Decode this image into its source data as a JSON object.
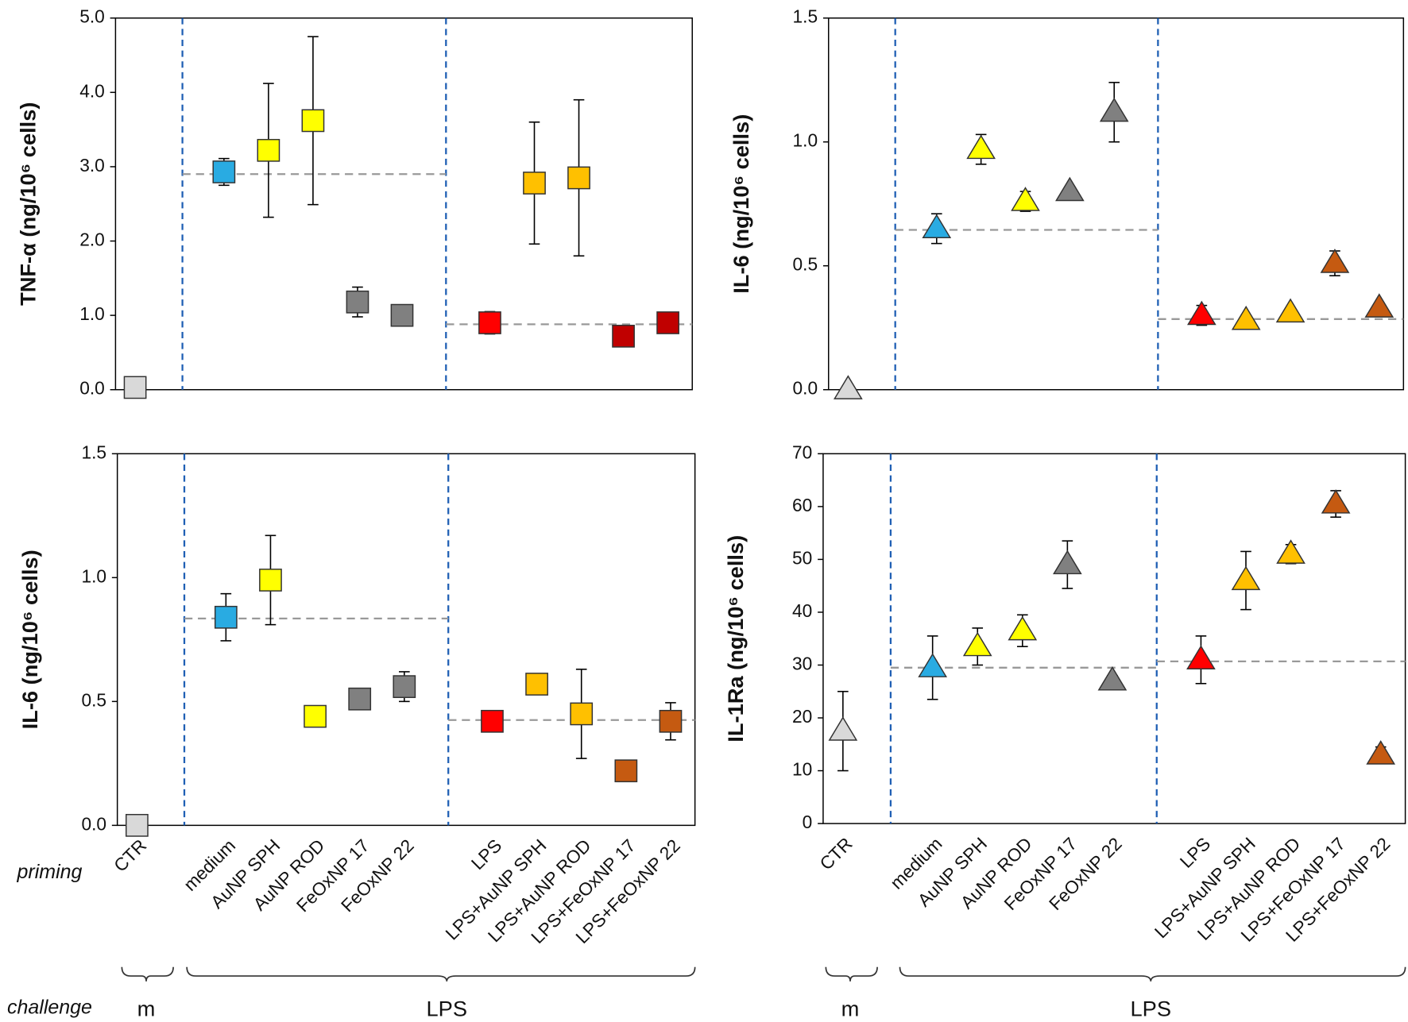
{
  "annotations": {
    "priming": "priming",
    "challenge": "challenge",
    "m": "m",
    "LPS": "LPS"
  },
  "chart_data": [
    {
      "type": "errorbar",
      "marker": "square",
      "ylabel": "TNF-α (ng/10⁶ cells)",
      "ylim": [
        0,
        5
      ],
      "yticks": [
        {
          "value": 0,
          "label": "0.0"
        },
        {
          "value": 1,
          "label": "1.0"
        },
        {
          "value": 2,
          "label": "2.0"
        },
        {
          "value": 3,
          "label": "3.0"
        },
        {
          "value": 4,
          "label": "4.0"
        },
        {
          "value": 5,
          "label": "5.0"
        }
      ],
      "values": [
        0.03,
        2.93,
        3.22,
        3.62,
        1.18,
        1.0,
        0.9,
        2.78,
        2.85,
        0.72,
        0.9
      ],
      "errors": [
        0,
        0.18,
        0.9,
        1.13,
        0.2,
        0.05,
        0.15,
        0.82,
        1.05,
        0.05,
        0.05
      ],
      "colors": [
        "#d9d9d9",
        "#29abe2",
        "#ffff00",
        "#ffff00",
        "#808080",
        "#808080",
        "#ff0000",
        "#ffc000",
        "#ffc000",
        "#c00000",
        "#c00000"
      ],
      "reference_lines": [
        2.9,
        0.88
      ]
    },
    {
      "type": "errorbar",
      "marker": "triangle",
      "ylabel": "IL-6 (ng/10⁶ cells)",
      "ylim": [
        0,
        1.5
      ],
      "yticks": [
        {
          "value": 0,
          "label": "0.0"
        },
        0.5,
        {
          "value": 1,
          "label": "1.0"
        },
        1.5
      ],
      "values": [
        0.0,
        0.65,
        0.97,
        0.76,
        0.8,
        1.12,
        0.3,
        0.28,
        0.31,
        0.51,
        0.33
      ],
      "errors": [
        0,
        0.06,
        0.06,
        0.04,
        0.02,
        0.12,
        0.04,
        0.02,
        0.02,
        0.05,
        0.02
      ],
      "colors": [
        "#d9d9d9",
        "#29abe2",
        "#ffff00",
        "#ffff00",
        "#808080",
        "#808080",
        "#ff0000",
        "#ffc000",
        "#ffc000",
        "#c55a11",
        "#c55a11"
      ],
      "reference_lines": [
        0.645,
        0.285
      ]
    },
    {
      "type": "errorbar",
      "marker": "square",
      "ylabel": "IL-6 (ng/10⁶ cells)",
      "categories": [
        "CTR",
        "medium",
        "AuNP SPH",
        "AuNP ROD",
        "FeOxNP 17",
        "FeOxNP 22",
        "LPS",
        "LPS+AuNP SPH",
        "LPS+AuNP ROD",
        "LPS+FeOxNP 17",
        "LPS+FeOxNP 22"
      ],
      "ylim": [
        0,
        1.5
      ],
      "yticks": [
        {
          "value": 0,
          "label": "0.0"
        },
        0.5,
        {
          "value": 1,
          "label": "1.0"
        },
        1.5
      ],
      "values": [
        0.0,
        0.84,
        0.99,
        0.44,
        0.51,
        0.56,
        0.42,
        0.57,
        0.45,
        0.22,
        0.42
      ],
      "errors": [
        0,
        0.095,
        0.18,
        0.02,
        0.02,
        0.06,
        0.02,
        0.02,
        0.18,
        0.02,
        0.075
      ],
      "colors": [
        "#d9d9d9",
        "#29abe2",
        "#ffff00",
        "#ffff00",
        "#808080",
        "#808080",
        "#ff0000",
        "#ffc000",
        "#ffc000",
        "#c55a11",
        "#c55a11"
      ],
      "reference_lines": [
        0.835,
        0.425
      ]
    },
    {
      "type": "errorbar",
      "marker": "triangle",
      "ylabel": "IL-1Ra (ng/10⁶ cells)",
      "categories": [
        "CTR",
        "medium",
        "AuNP SPH",
        "AuNP ROD",
        "FeOxNP 17",
        "FeOxNP 22",
        "LPS",
        "LPS+AuNP SPH",
        "LPS+AuNP ROD",
        "LPS+FeOxNP 17",
        "LPS+FeOxNP 22"
      ],
      "ylim": [
        0,
        70
      ],
      "yticks": [
        0,
        10,
        20,
        30,
        40,
        50,
        60,
        70
      ],
      "values": [
        17.5,
        29.5,
        33.5,
        36.5,
        49,
        27,
        31,
        46,
        51,
        60.5,
        13
      ],
      "errors": [
        7.5,
        6,
        3.5,
        3,
        4.5,
        1,
        4.5,
        5.5,
        1.8,
        2.5,
        1.5
      ],
      "colors": [
        "#d9d9d9",
        "#29abe2",
        "#ffff00",
        "#ffff00",
        "#808080",
        "#808080",
        "#ff0000",
        "#ffc000",
        "#ffc000",
        "#c55a11",
        "#c55a11"
      ],
      "reference_lines": [
        29.5,
        30.7
      ]
    }
  ]
}
